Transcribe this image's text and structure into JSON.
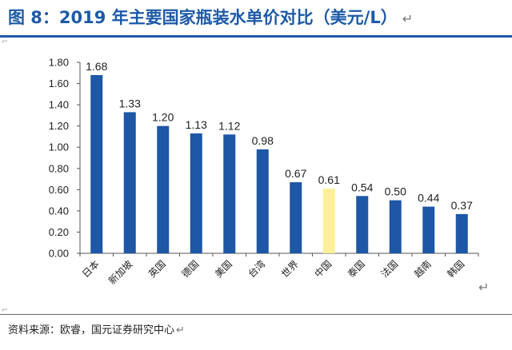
{
  "figure": {
    "title": "图 8：2019 年主要国家瓶装水单价对比（美元/L）",
    "return_mark": "↵",
    "source": "资料来源：欧睿，国元证券研究中心"
  },
  "colors": {
    "title": "#1d5aa8",
    "bar": "#1d57a6",
    "bar_highlight": "#fdef9a"
  },
  "chart_data": {
    "type": "bar",
    "title": "",
    "xlabel": "",
    "ylabel": "",
    "ylim": [
      0,
      1.8
    ],
    "yticks": [
      "0.00",
      "0.20",
      "0.40",
      "0.60",
      "0.80",
      "1.00",
      "1.20",
      "1.40",
      "1.60",
      "1.80"
    ],
    "grid": false,
    "categories": [
      "日本",
      "新加坡",
      "英国",
      "德国",
      "美国",
      "台湾",
      "世界",
      "中国",
      "泰国",
      "法国",
      "越南",
      "韩国"
    ],
    "values": [
      1.68,
      1.33,
      1.2,
      1.13,
      1.12,
      0.98,
      0.67,
      0.61,
      0.54,
      0.5,
      0.44,
      0.37
    ],
    "data_labels": [
      "1.68",
      "1.33",
      "1.20",
      "1.13",
      "1.12",
      "0.98",
      "0.67",
      "0.61",
      "0.54",
      "0.50",
      "0.44",
      "0.37"
    ],
    "highlight_category": "中国"
  }
}
